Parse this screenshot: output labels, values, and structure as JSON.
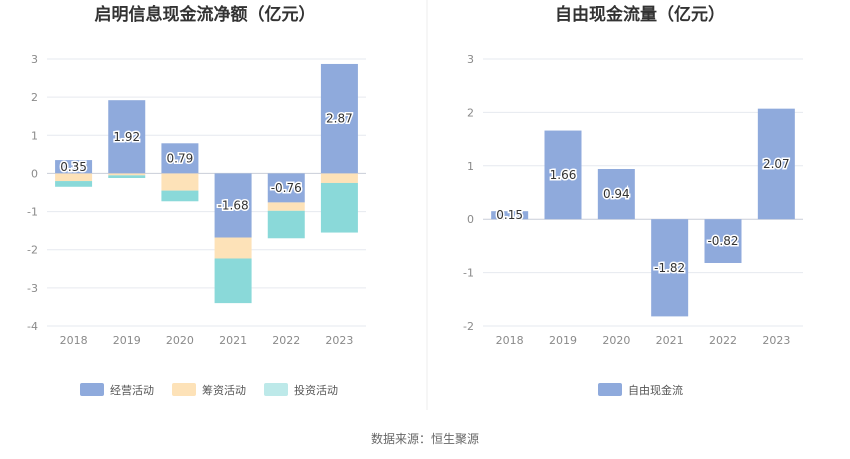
{
  "source_text": "数据来源：恒生聚源",
  "colors": {
    "operating": "#8faadc",
    "financing": "#fde2b8",
    "investing": "#8ad9d9",
    "fcf": "#8faadc",
    "grid": "#e6e9ef",
    "divider": "#eeeeee"
  },
  "chart_data": [
    {
      "type": "bar",
      "stacked": true,
      "title": "启明信息现金流净额（亿元）",
      "categories": [
        "2018",
        "2019",
        "2020",
        "2021",
        "2022",
        "2023"
      ],
      "ylim": [
        -4,
        3
      ],
      "yticks": [
        -4,
        -3,
        -2,
        -1,
        0,
        1,
        2,
        3
      ],
      "grid": true,
      "legend_position": "bottom",
      "series": [
        {
          "name": "经营活动",
          "color": "#8faadc",
          "values": [
            0.35,
            1.92,
            0.79,
            -1.68,
            -0.76,
            2.87
          ],
          "labels": [
            "0.35",
            "1.92",
            "0.79",
            "-1.68",
            "-0.76",
            "2.87"
          ]
        },
        {
          "name": "筹资活动",
          "color": "#fde2b8",
          "values": [
            -0.2,
            -0.05,
            -0.45,
            -0.55,
            -0.22,
            -0.25
          ]
        },
        {
          "name": "投资活动",
          "color": "#8ad9d9",
          "values": [
            -0.15,
            -0.07,
            -0.28,
            -1.17,
            -0.72,
            -1.3
          ]
        }
      ]
    },
    {
      "type": "bar",
      "title": "自由现金流量（亿元）",
      "categories": [
        "2018",
        "2019",
        "2020",
        "2021",
        "2022",
        "2023"
      ],
      "ylim": [
        -2,
        3
      ],
      "yticks": [
        -2,
        -1,
        0,
        1,
        2,
        3
      ],
      "grid": true,
      "legend_position": "bottom",
      "series": [
        {
          "name": "自由现金流",
          "color": "#8faadc",
          "values": [
            0.15,
            1.66,
            0.94,
            -1.82,
            -0.82,
            2.07
          ],
          "labels": [
            "0.15",
            "1.66",
            "0.94",
            "-1.82",
            "-0.82",
            "2.07"
          ]
        }
      ]
    }
  ]
}
